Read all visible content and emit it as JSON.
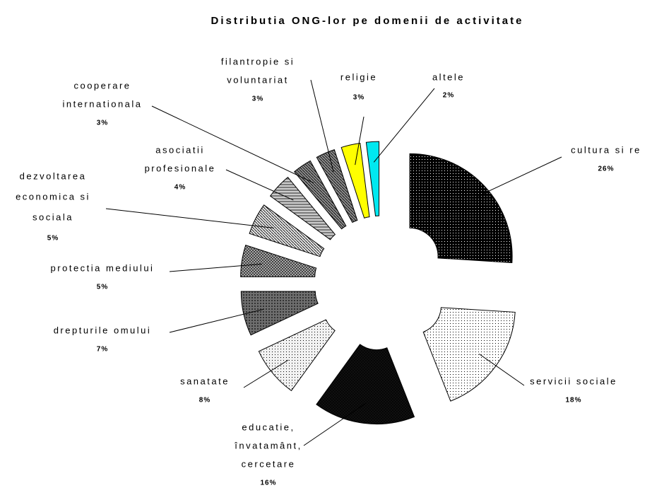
{
  "chart_data": {
    "type": "pie",
    "title": "Distributia ONG-lor pe domenii de activitate",
    "categories": [
      [
        "cultura si re"
      ],
      [
        "servicii sociale"
      ],
      [
        "educatie,",
        "învatamânt,",
        "cercetare"
      ],
      [
        "sanatate"
      ],
      [
        "drepturile omului"
      ],
      [
        "protectia mediului"
      ],
      [
        "dezvoltarea",
        "economica si",
        "sociala"
      ],
      [
        "asociatii",
        "profesionale"
      ],
      [
        "cooperare",
        "internationala"
      ],
      [
        "filantropie si",
        "voluntariat"
      ],
      [
        "religie"
      ],
      [
        "altele"
      ]
    ],
    "values": [
      26,
      18,
      16,
      8,
      7,
      5,
      5,
      4,
      3,
      3,
      3,
      2
    ],
    "value_labels": [
      "26%",
      "18%",
      "16%",
      "8%",
      "7%",
      "5%",
      "5%",
      "4%",
      "3%",
      "3%",
      "3%",
      "2%"
    ],
    "colors": [
      "#000000",
      "#ffffff",
      "#111111",
      "#f2f2f2",
      "#6e6e6e",
      "#b4b4b4",
      "#e6e6e6",
      "#cccccc",
      "#8c8c8c",
      "#8c8c8c",
      "#ffff00",
      "#00e8f0"
    ]
  }
}
